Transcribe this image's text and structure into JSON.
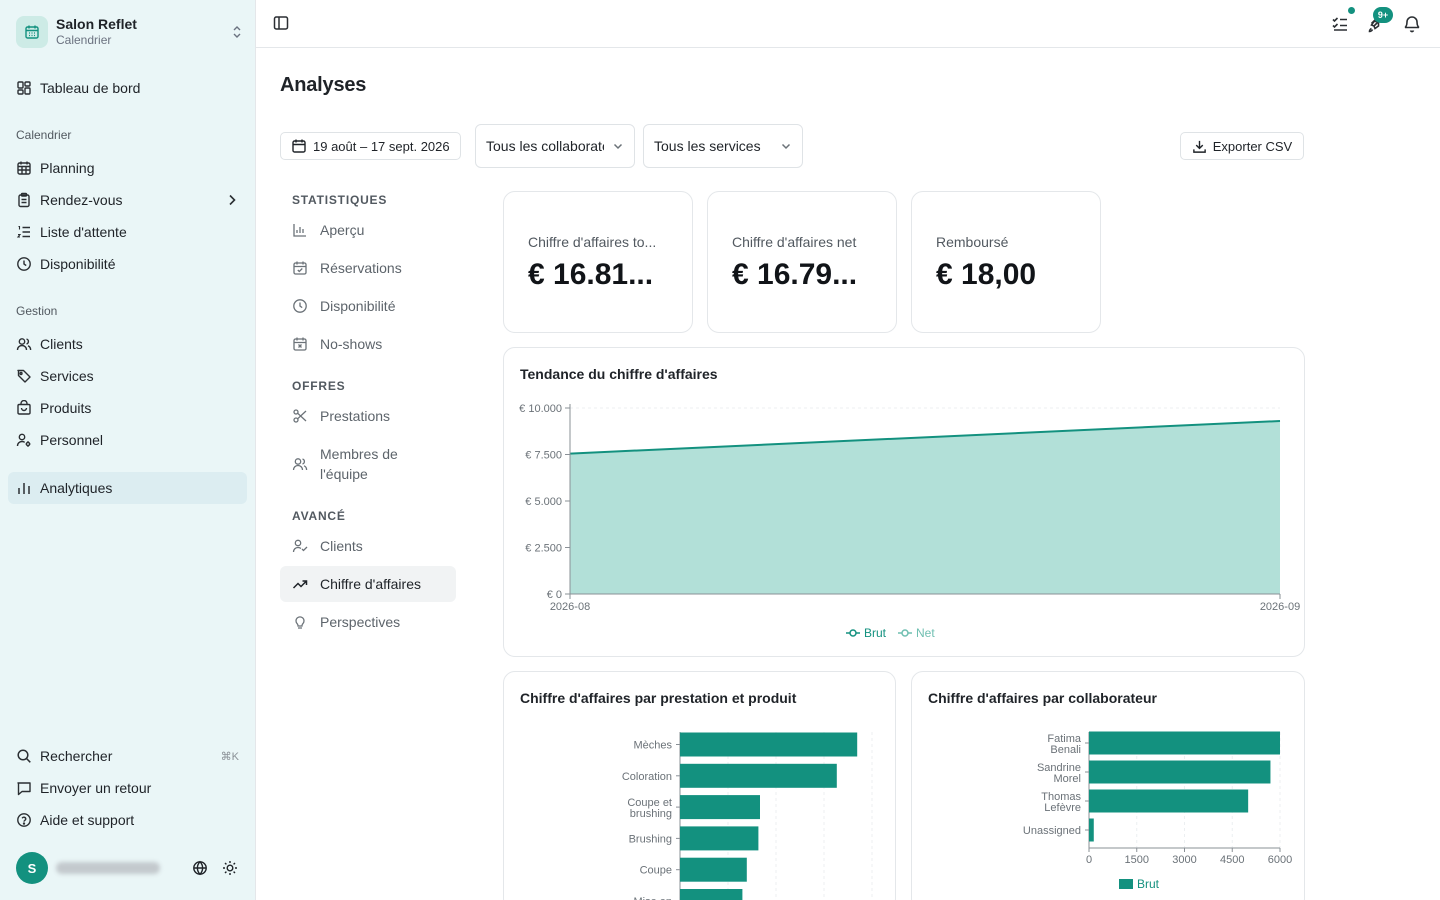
{
  "brand": {
    "name": "Salon Reflet",
    "subtitle": "Calendrier"
  },
  "sidebar": {
    "dashboard": "Tableau de bord",
    "group_calendar": "Calendrier",
    "planning": "Planning",
    "appointments": "Rendez-vous",
    "waitlist": "Liste d'attente",
    "availability": "Disponibilité",
    "group_management": "Gestion",
    "clients": "Clients",
    "services": "Services",
    "products": "Produits",
    "staff": "Personnel",
    "analytics": "Analytiques",
    "search": "Rechercher",
    "search_shortcut": "⌘K",
    "feedback": "Envoyer un retour",
    "help": "Aide et support",
    "avatar_initial": "S"
  },
  "header": {
    "notifications_badge": "9+"
  },
  "page": {
    "title": "Analyses"
  },
  "filters": {
    "date_range": "19 août – 17 sept. 2026",
    "collaborators": "Tous les collaborateurs",
    "services": "Tous les services",
    "export": "Exporter CSV"
  },
  "subnav": {
    "group_stats": "STATISTIQUES",
    "overview": "Aperçu",
    "reservations": "Réservations",
    "availability": "Disponibilité",
    "noshows": "No-shows",
    "group_offers": "OFFRES",
    "prestations": "Prestations",
    "team_line1": "Membres de",
    "team_line2": "l'équipe",
    "group_advanced": "AVANCÉ",
    "clients": "Clients",
    "revenue": "Chiffre d'affaires",
    "outlook": "Perspectives"
  },
  "kpis": [
    {
      "label": "Chiffre d'affaires to...",
      "value": "€ 16.81..."
    },
    {
      "label": "Chiffre d'affaires net",
      "value": "€ 16.79..."
    },
    {
      "label": "Remboursé",
      "value": "€ 18,00"
    }
  ],
  "colors": {
    "accent": "#13917f",
    "area_fill": "#b2e0d8",
    "sidebar_bg": "#eaf6f7"
  },
  "chart_data": [
    {
      "type": "area",
      "title": "Tendance du chiffre d'affaires",
      "x": [
        "2026-08",
        "2026-09"
      ],
      "series": [
        {
          "name": "Brut",
          "values": [
            7550,
            9300
          ]
        },
        {
          "name": "Net",
          "values": [
            7550,
            9300
          ]
        }
      ],
      "yticks": [
        "€ 0",
        "€ 2.500",
        "€ 5.000",
        "€ 7.500",
        "€ 10.000"
      ],
      "ylim": [
        0,
        10000
      ],
      "legend": "bottom",
      "grid": true
    },
    {
      "type": "bar",
      "orientation": "horizontal",
      "title": "Chiffre d'affaires par prestation et produit",
      "categories": [
        "Mèches",
        "Coloration",
        "Coupe et brushing",
        "Brushing",
        "Coupe",
        "Mise en"
      ],
      "values": [
        4430,
        3920,
        2000,
        1960,
        1670,
        1560
      ],
      "xlim": [
        0,
        4800
      ],
      "grid": true
    },
    {
      "type": "bar",
      "orientation": "horizontal",
      "title": "Chiffre d'affaires par collaborateur",
      "categories": [
        "Fatima Benali",
        "Sandrine Morel",
        "Thomas Lefèvre",
        "Unassigned"
      ],
      "series": [
        {
          "name": "Brut",
          "values": [
            6000,
            5700,
            5000,
            150
          ]
        }
      ],
      "xticks": [
        "0",
        "1500",
        "3000",
        "4500",
        "6000"
      ],
      "xlim": [
        0,
        6000
      ],
      "legend": "bottom",
      "grid": true
    }
  ]
}
